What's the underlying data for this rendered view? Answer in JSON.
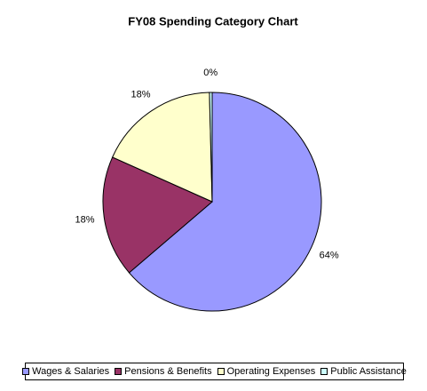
{
  "chart_data": {
    "type": "pie",
    "title": "FY08 Spending Category Chart",
    "categories": [
      "Wages & Salaries",
      "Pensions & Benefits",
      "Operating Expenses",
      "Public Assistance"
    ],
    "values": [
      64,
      18,
      18,
      0.4
    ],
    "value_labels": [
      "64%",
      "18%",
      "18%",
      "0%"
    ],
    "colors": [
      "#9999ff",
      "#993366",
      "#ffffcc",
      "#ccffff"
    ],
    "legend": "bottom"
  }
}
